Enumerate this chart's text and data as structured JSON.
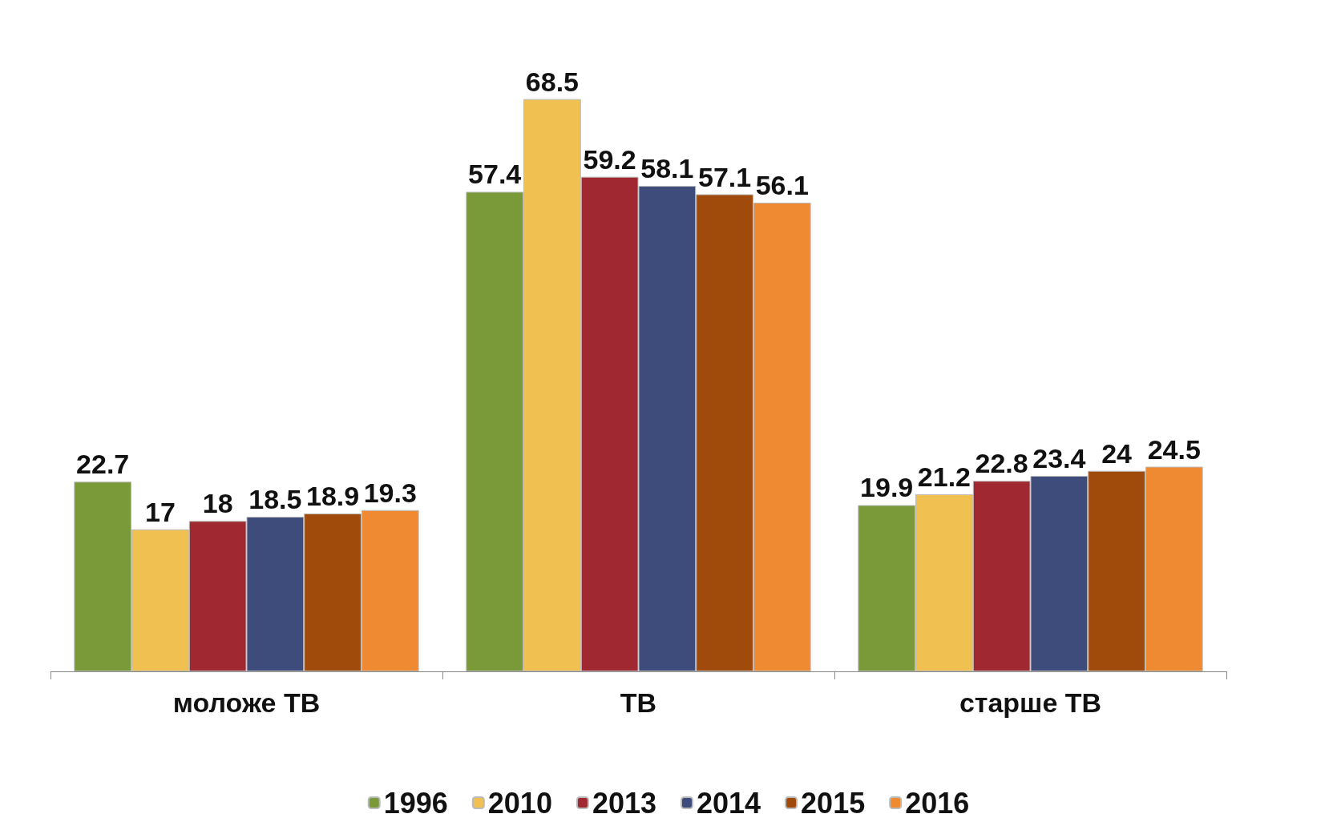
{
  "chart_data": {
    "type": "bar",
    "categories": [
      "моложе ТВ",
      "ТВ",
      "старше ТВ"
    ],
    "series": [
      {
        "name": "1996",
        "color": "#7a9a3a",
        "values": [
          22.7,
          57.4,
          19.9
        ]
      },
      {
        "name": "2010",
        "color": "#f0c050",
        "values": [
          17,
          68.5,
          21.2
        ]
      },
      {
        "name": "2013",
        "color": "#a02830",
        "values": [
          18,
          59.2,
          22.8
        ]
      },
      {
        "name": "2014",
        "color": "#3e4c7c",
        "values": [
          18.5,
          58.1,
          23.4
        ]
      },
      {
        "name": "2015",
        "color": "#a04a0c",
        "values": [
          18.9,
          57.1,
          24
        ]
      },
      {
        "name": "2016",
        "color": "#f08a32",
        "values": [
          19.3,
          56.1,
          24.5
        ]
      }
    ],
    "data_labels": true,
    "legend": "bottom",
    "grid": false
  }
}
